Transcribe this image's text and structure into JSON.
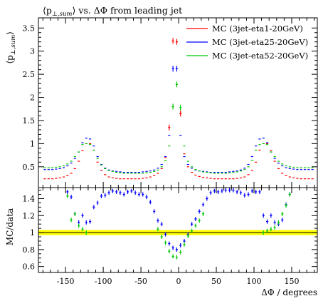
{
  "chart_data": {
    "type": "scatter",
    "title_parts": [
      "⟨p",
      "⊥,sum",
      "⟩ vs. ΔΦ from leading jet"
    ],
    "main": {
      "ylabel_parts": [
        "⟨p",
        "⊥,sum",
        "⟩"
      ],
      "ylim": [
        0.05,
        3.72
      ],
      "yticks": [
        0.5,
        1,
        1.5,
        2,
        2.5,
        3,
        3.5
      ],
      "ytick_labels": [
        "0.5",
        "1",
        "1.5",
        "2",
        "2.5",
        "3",
        "3.5"
      ]
    },
    "ratio": {
      "ylabel": "MC/data",
      "ylim": [
        0.53,
        1.53
      ],
      "yticks": [
        0.6,
        0.8,
        1.0,
        1.2,
        1.4
      ],
      "ytick_labels": [
        "0.6",
        "0.8",
        "1",
        "1.2",
        "1.4"
      ],
      "band": [
        0.97,
        1.03
      ]
    },
    "xlabel": "ΔΦ / degrees",
    "xlim": [
      -186,
      184
    ],
    "xticks": [
      -150,
      -100,
      -50,
      0,
      50,
      100,
      150
    ],
    "xtick_labels": [
      "-150",
      "-100",
      "-50",
      "0",
      "50",
      "100",
      "150"
    ],
    "x": [
      -177.5,
      -172.5,
      -167.5,
      -162.5,
      -157.5,
      -152.5,
      -147.5,
      -142.5,
      -137.5,
      -132.5,
      -127.5,
      -122.5,
      -117.5,
      -112.5,
      -107.5,
      -102.5,
      -97.5,
      -92.5,
      -87.5,
      -82.5,
      -77.5,
      -72.5,
      -67.5,
      -62.5,
      -57.5,
      -52.5,
      -47.5,
      -42.5,
      -37.5,
      -32.5,
      -27.5,
      -22.5,
      -17.5,
      -12.5,
      -7.5,
      -2.5,
      2.5,
      7.5,
      12.5,
      17.5,
      22.5,
      27.5,
      32.5,
      37.5,
      42.5,
      47.5,
      52.5,
      57.5,
      62.5,
      67.5,
      72.5,
      77.5,
      82.5,
      87.5,
      92.5,
      97.5,
      102.5,
      107.5,
      112.5,
      117.5,
      122.5,
      127.5,
      132.5,
      137.5,
      142.5,
      147.5,
      152.5,
      157.5,
      162.5,
      167.5,
      172.5,
      177.5
    ],
    "series": [
      {
        "name": "MC (3jet-eta1-20GeV)",
        "color": "#ff0000",
        "values": [
          0.24,
          0.24,
          0.24,
          0.25,
          0.26,
          0.28,
          0.31,
          0.36,
          0.46,
          0.62,
          0.85,
          1.0,
          1.0,
          0.86,
          0.6,
          0.42,
          0.33,
          0.28,
          0.26,
          0.25,
          0.24,
          0.24,
          0.24,
          0.24,
          0.24,
          0.24,
          0.25,
          0.26,
          0.28,
          0.31,
          0.36,
          0.46,
          0.7,
          1.35,
          3.22,
          3.2,
          1.65,
          0.78,
          0.5,
          0.38,
          0.32,
          0.29,
          0.27,
          0.26,
          0.25,
          0.24,
          0.24,
          0.24,
          0.24,
          0.24,
          0.24,
          0.25,
          0.26,
          0.28,
          0.33,
          0.42,
          0.6,
          0.86,
          1.0,
          1.0,
          0.85,
          0.62,
          0.46,
          0.36,
          0.31,
          0.28,
          0.26,
          0.25,
          0.24,
          0.24,
          0.24,
          0.24
        ],
        "ratio": []
      },
      {
        "name": "MC (3jet-eta25-20GeV)",
        "color": "#0000ff",
        "values": [
          0.44,
          0.44,
          0.44,
          0.45,
          0.46,
          0.48,
          0.52,
          0.58,
          0.68,
          0.82,
          1.02,
          1.12,
          1.1,
          0.95,
          0.72,
          0.55,
          0.47,
          0.43,
          0.41,
          0.4,
          0.39,
          0.38,
          0.38,
          0.38,
          0.38,
          0.38,
          0.39,
          0.4,
          0.41,
          0.43,
          0.47,
          0.55,
          0.72,
          1.18,
          2.62,
          2.62,
          1.18,
          0.72,
          0.55,
          0.47,
          0.43,
          0.41,
          0.4,
          0.39,
          0.38,
          0.38,
          0.38,
          0.38,
          0.38,
          0.39,
          0.4,
          0.41,
          0.43,
          0.47,
          0.55,
          0.72,
          0.95,
          1.1,
          1.12,
          1.02,
          0.82,
          0.68,
          0.58,
          0.52,
          0.48,
          0.46,
          0.45,
          0.44,
          0.44,
          0.44,
          0.44,
          0.44
        ],
        "ratio": [
          null,
          null,
          null,
          null,
          null,
          null,
          1.48,
          1.42,
          1.22,
          1.12,
          1.2,
          1.12,
          1.13,
          1.3,
          1.35,
          1.43,
          1.44,
          1.47,
          1.49,
          1.48,
          1.47,
          1.45,
          1.48,
          1.49,
          1.47,
          1.45,
          1.45,
          1.42,
          1.36,
          1.25,
          1.14,
          1.1,
          0.98,
          0.87,
          0.82,
          0.8,
          0.85,
          0.9,
          0.98,
          1.1,
          1.16,
          1.25,
          1.33,
          1.4,
          1.47,
          1.49,
          1.48,
          1.49,
          1.5,
          1.5,
          1.5,
          1.48,
          1.47,
          1.44,
          1.45,
          1.49,
          1.48,
          1.48,
          1.2,
          1.13,
          1.2,
          1.12,
          1.1,
          1.15,
          1.33,
          1.45,
          null,
          null,
          null,
          null,
          null,
          null
        ]
      },
      {
        "name": "MC (3jet-eta52-20GeV)",
        "color": "#00c800",
        "values": [
          0.48,
          0.48,
          0.48,
          0.49,
          0.5,
          0.52,
          0.56,
          0.62,
          0.72,
          0.82,
          0.98,
          1.0,
          0.98,
          0.86,
          0.68,
          0.54,
          0.46,
          0.42,
          0.4,
          0.38,
          0.37,
          0.36,
          0.36,
          0.36,
          0.36,
          0.36,
          0.36,
          0.37,
          0.38,
          0.4,
          0.43,
          0.5,
          0.63,
          0.95,
          1.8,
          2.28,
          1.78,
          0.95,
          0.62,
          0.5,
          0.44,
          0.41,
          0.39,
          0.38,
          0.37,
          0.36,
          0.36,
          0.36,
          0.36,
          0.37,
          0.38,
          0.39,
          0.41,
          0.44,
          0.5,
          0.64,
          0.86,
          0.98,
          1.0,
          0.98,
          0.82,
          0.72,
          0.62,
          0.56,
          0.52,
          0.5,
          0.49,
          0.48,
          0.48,
          0.48,
          0.48,
          0.48
        ],
        "ratio": [
          null,
          null,
          null,
          null,
          null,
          null,
          1.43,
          1.15,
          1.22,
          1.08,
          1.04,
          1.0,
          null,
          null,
          null,
          null,
          null,
          null,
          null,
          null,
          null,
          null,
          null,
          null,
          null,
          null,
          null,
          null,
          null,
          null,
          1.04,
          0.95,
          0.88,
          0.78,
          0.72,
          0.71,
          0.77,
          0.86,
          0.96,
          1.02,
          1.08,
          1.14,
          1.22,
          null,
          null,
          null,
          null,
          null,
          null,
          null,
          null,
          null,
          null,
          null,
          null,
          null,
          null,
          null,
          1.0,
          1.02,
          1.04,
          1.06,
          1.12,
          1.22,
          1.32,
          1.45,
          null,
          null,
          null,
          null,
          null,
          null
        ]
      }
    ]
  }
}
